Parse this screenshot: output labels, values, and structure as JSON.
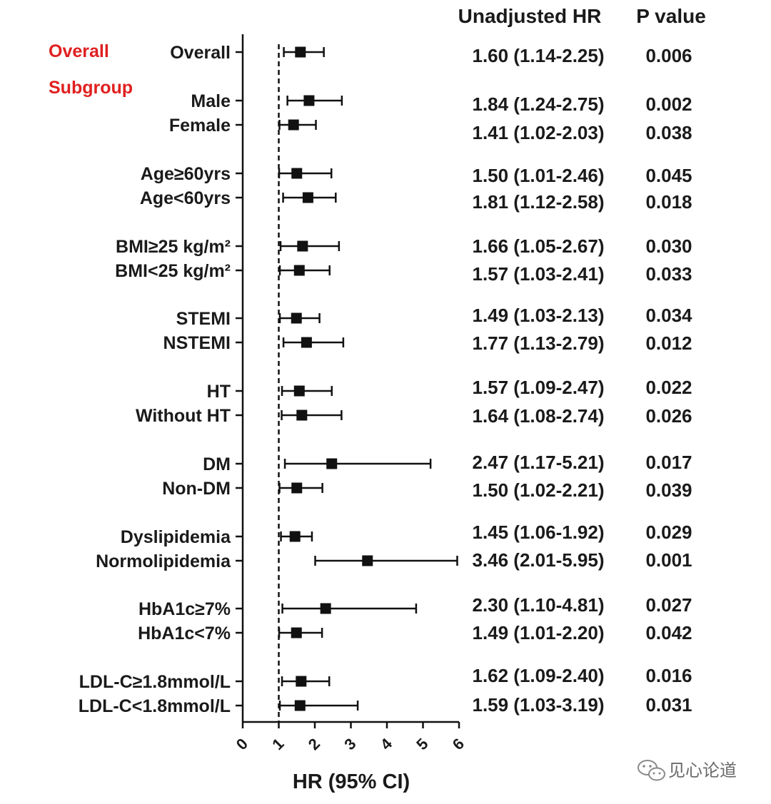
{
  "chart_data": {
    "type": "forest",
    "xlabel": "HR (95% CI)",
    "xlim": [
      0,
      6
    ],
    "x_ticks": [
      "0",
      "1",
      "2",
      "3",
      "4",
      "5",
      "6"
    ],
    "reference_line": 1,
    "column_headers": {
      "hr": "Unadjusted HR",
      "p": "P value"
    },
    "section_labels": [
      "Overall",
      "Subgroup"
    ],
    "rows": [
      {
        "label": "Overall",
        "hr": 1.6,
        "lo": 1.14,
        "hi": 2.25,
        "hr_text": "1.60 (1.14-2.25)",
        "p": "0.006"
      },
      {
        "label": "Male",
        "hr": 1.84,
        "lo": 1.24,
        "hi": 2.75,
        "hr_text": "1.84 (1.24-2.75)",
        "p": "0.002"
      },
      {
        "label": "Female",
        "hr": 1.41,
        "lo": 1.02,
        "hi": 2.03,
        "hr_text": "1.41 (1.02-2.03)",
        "p": "0.038"
      },
      {
        "label": "Age≥60yrs",
        "hr": 1.5,
        "lo": 1.01,
        "hi": 2.46,
        "hr_text": "1.50 (1.01-2.46)",
        "p": "0.045"
      },
      {
        "label": "Age<60yrs",
        "hr": 1.81,
        "lo": 1.12,
        "hi": 2.58,
        "hr_text": "1.81 (1.12-2.58)",
        "p": "0.018"
      },
      {
        "label": "BMI≥25 kg/m²",
        "hr": 1.66,
        "lo": 1.05,
        "hi": 2.67,
        "hr_text": "1.66 (1.05-2.67)",
        "p": "0.030"
      },
      {
        "label": "BMI<25 kg/m²",
        "hr": 1.57,
        "lo": 1.03,
        "hi": 2.41,
        "hr_text": "1.57 (1.03-2.41)",
        "p": "0.033"
      },
      {
        "label": "STEMI",
        "hr": 1.49,
        "lo": 1.03,
        "hi": 2.13,
        "hr_text": "1.49 (1.03-2.13)",
        "p": "0.034"
      },
      {
        "label": "NSTEMI",
        "hr": 1.77,
        "lo": 1.13,
        "hi": 2.79,
        "hr_text": "1.77 (1.13-2.79)",
        "p": "0.012"
      },
      {
        "label": "HT",
        "hr": 1.57,
        "lo": 1.09,
        "hi": 2.47,
        "hr_text": "1.57 (1.09-2.47)",
        "p": "0.022"
      },
      {
        "label": "Without HT",
        "hr": 1.64,
        "lo": 1.08,
        "hi": 2.74,
        "hr_text": "1.64 (1.08-2.74)",
        "p": "0.026"
      },
      {
        "label": "DM",
        "hr": 2.47,
        "lo": 1.17,
        "hi": 5.21,
        "hr_text": "2.47 (1.17-5.21)",
        "p": "0.017"
      },
      {
        "label": "Non-DM",
        "hr": 1.5,
        "lo": 1.02,
        "hi": 2.21,
        "hr_text": "1.50 (1.02-2.21)",
        "p": "0.039"
      },
      {
        "label": "Dyslipidemia",
        "hr": 1.45,
        "lo": 1.06,
        "hi": 1.92,
        "hr_text": "1.45 (1.06-1.92)",
        "p": "0.029"
      },
      {
        "label": "Normolipidemia",
        "hr": 3.46,
        "lo": 2.01,
        "hi": 5.95,
        "hr_text": "3.46 (2.01-5.95)",
        "p": "0.001"
      },
      {
        "label": "HbA1c≥7%",
        "hr": 2.3,
        "lo": 1.1,
        "hi": 4.81,
        "hr_text": "2.30 (1.10-4.81)",
        "p": "0.027"
      },
      {
        "label": "HbA1c<7%",
        "hr": 1.49,
        "lo": 1.01,
        "hi": 2.2,
        "hr_text": "1.49 (1.01-2.20)",
        "p": "0.042"
      },
      {
        "label": "LDL-C≥1.8mmol/L",
        "hr": 1.62,
        "lo": 1.09,
        "hi": 2.4,
        "hr_text": "1.62 (1.09-2.40)",
        "p": "0.016"
      },
      {
        "label": "LDL-C<1.8mmol/L",
        "hr": 1.59,
        "lo": 1.03,
        "hi": 3.19,
        "hr_text": "1.59 (1.03-3.19)",
        "p": "0.031"
      }
    ],
    "colors": {
      "section_label": "#e02020",
      "marks": "#111111",
      "text": "#1a1a1a"
    }
  },
  "watermark": {
    "text": "见心论道",
    "icon": "wechat-icon"
  }
}
